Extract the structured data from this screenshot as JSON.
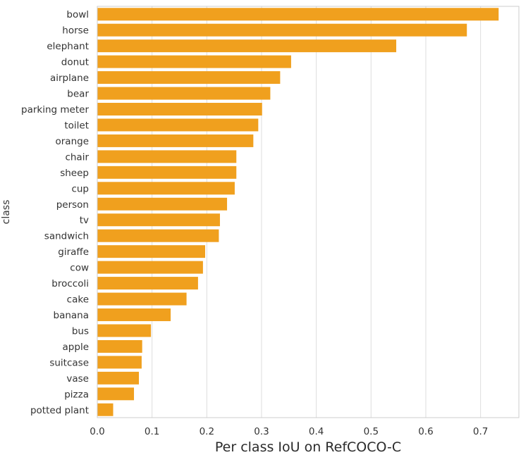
{
  "chart_data": {
    "type": "bar",
    "orientation": "horizontal",
    "title": "",
    "xlabel": "Per class IoU on RefCOCO-C",
    "ylabel": "class",
    "xlim": [
      0,
      0.77
    ],
    "xticks": [
      "0.0",
      "0.1",
      "0.2",
      "0.3",
      "0.4",
      "0.5",
      "0.6",
      "0.7"
    ],
    "grid": "vertical",
    "bar_color": "#f0a01e",
    "categories": [
      "bowl",
      "horse",
      "elephant",
      "donut",
      "airplane",
      "bear",
      "parking meter",
      "toilet",
      "orange",
      "chair",
      "sheep",
      "cup",
      "person",
      "tv",
      "sandwich",
      "giraffe",
      "cow",
      "broccoli",
      "cake",
      "banana",
      "bus",
      "apple",
      "suitcase",
      "vase",
      "pizza",
      "potted plant"
    ],
    "values": [
      0.733,
      0.675,
      0.546,
      0.354,
      0.334,
      0.316,
      0.301,
      0.294,
      0.285,
      0.254,
      0.254,
      0.251,
      0.237,
      0.224,
      0.222,
      0.197,
      0.193,
      0.184,
      0.163,
      0.134,
      0.098,
      0.082,
      0.081,
      0.076,
      0.067,
      0.029
    ]
  }
}
